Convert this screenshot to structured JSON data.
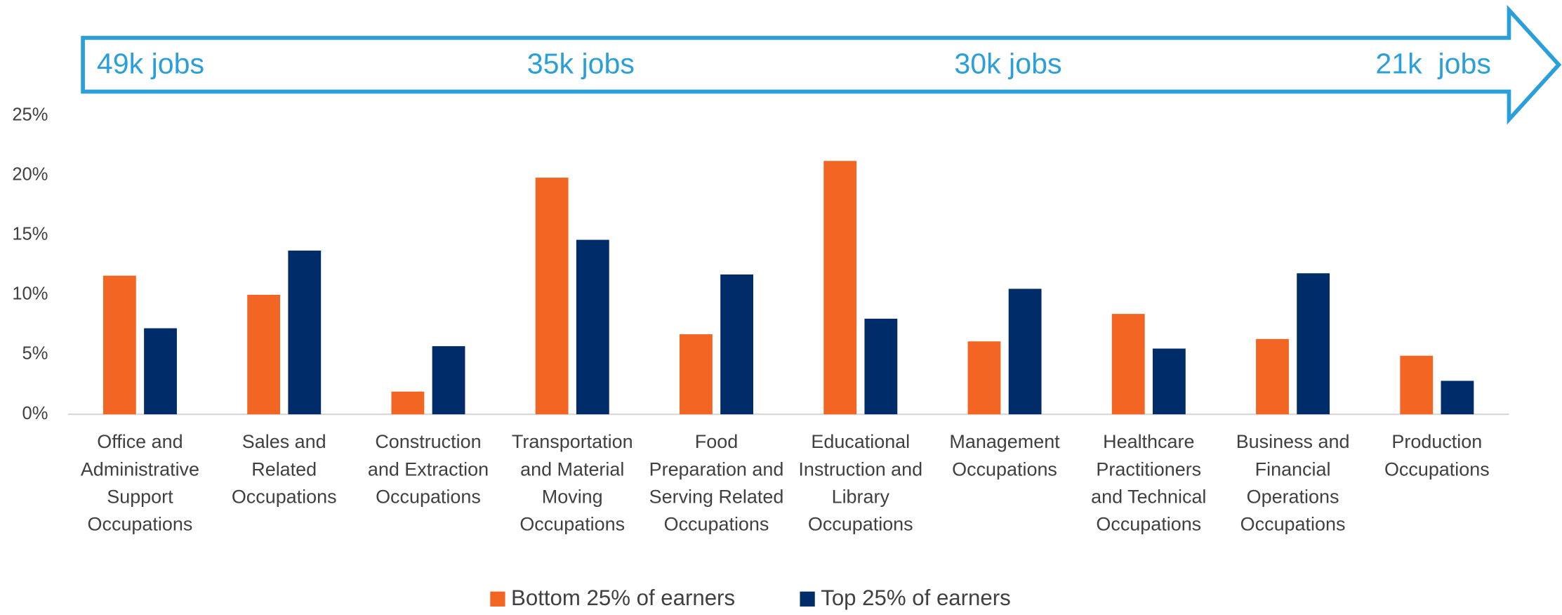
{
  "chart_data": {
    "type": "bar",
    "arrow_labels": [
      "49k jobs",
      "35k jobs",
      "30k jobs",
      "21k  jobs"
    ],
    "arrow_color": "#2b9fd9",
    "categories": [
      "Office and Administrative Support Occupations",
      "Sales and Related Occupations",
      "Construction and Extraction Occupations",
      "Transportation and Material Moving Occupations",
      "Food Preparation and Serving Related Occupations",
      "Educational Instruction and Library Occupations",
      "Management Occupations",
      "Healthcare Practitioners and Technical Occupations",
      "Business and Financial Operations Occupations",
      "Production Occupations"
    ],
    "series": [
      {
        "name": "Bottom 25% of earners",
        "color": "#f26522",
        "values": [
          11.6,
          10.0,
          1.9,
          19.8,
          6.7,
          21.2,
          6.1,
          8.4,
          6.3,
          4.9
        ]
      },
      {
        "name": "Top 25% of earners",
        "color": "#002d6a",
        "values": [
          7.2,
          13.7,
          5.7,
          14.6,
          11.7,
          8.0,
          10.5,
          5.5,
          11.8,
          2.8
        ]
      }
    ],
    "ylim": [
      0,
      25
    ],
    "yticks": [
      {
        "value": 0,
        "label": "0%"
      },
      {
        "value": 5,
        "label": "5%"
      },
      {
        "value": 10,
        "label": "10%"
      },
      {
        "value": 15,
        "label": "15%"
      },
      {
        "value": 20,
        "label": "20%"
      },
      {
        "value": 25,
        "label": "25%"
      }
    ],
    "legend": "bottom"
  }
}
